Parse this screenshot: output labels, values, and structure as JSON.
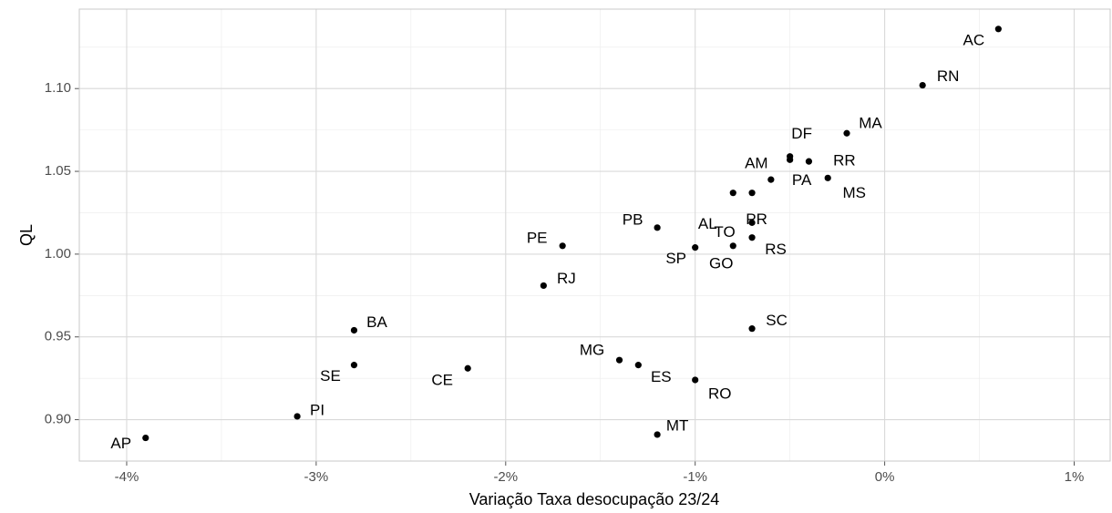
{
  "chart_data": {
    "type": "scatter",
    "x_label": "Variação Taxa desocupação 23/24",
    "y_label": "QL",
    "labels": [
      "AC",
      "RN",
      "MA",
      "DF",
      "PA",
      "RR",
      "MS",
      "AM",
      "AL",
      "PR",
      "TO",
      "RS",
      "GO",
      "SP",
      "PB",
      "PE",
      "RJ",
      "SC",
      "BA",
      "SE",
      "CE",
      "MG",
      "ES",
      "RO",
      "PI",
      "AP",
      "MT"
    ],
    "x": [
      0.6,
      0.2,
      -0.2,
      -0.5,
      -0.5,
      -0.4,
      -0.3,
      -0.6,
      -0.8,
      -0.7,
      -0.7,
      -0.7,
      -0.8,
      -1.0,
      -1.2,
      -1.7,
      -1.8,
      -0.7,
      -2.8,
      -2.8,
      -2.2,
      -1.4,
      -1.3,
      -1.0,
      -3.1,
      -3.9,
      -1.2
    ],
    "y": [
      1.136,
      1.102,
      1.073,
      1.059,
      1.057,
      1.056,
      1.046,
      1.045,
      1.037,
      1.037,
      1.019,
      1.01,
      1.005,
      1.004,
      1.016,
      1.005,
      0.981,
      0.955,
      0.954,
      0.933,
      0.931,
      0.936,
      0.933,
      0.924,
      0.902,
      0.889,
      0.891
    ],
    "color": "#000000",
    "xlim": [
      -4.25,
      1.19
    ],
    "ylim": [
      0.875,
      1.148
    ],
    "xticks": [
      {
        "value": -4,
        "label": "-4%"
      },
      {
        "value": -3,
        "label": "-3%"
      },
      {
        "value": -2,
        "label": "-2%"
      },
      {
        "value": -1,
        "label": "-1%"
      },
      {
        "value": 0,
        "label": "0%"
      },
      {
        "value": 1,
        "label": "1%"
      }
    ],
    "yticks": [
      {
        "value": 0.9,
        "label": "0.90"
      },
      0.95,
      {
        "value": 1.0,
        "label": "1.00"
      },
      1.05,
      {
        "value": 1.1,
        "label": "1.10"
      }
    ],
    "grid": true
  }
}
